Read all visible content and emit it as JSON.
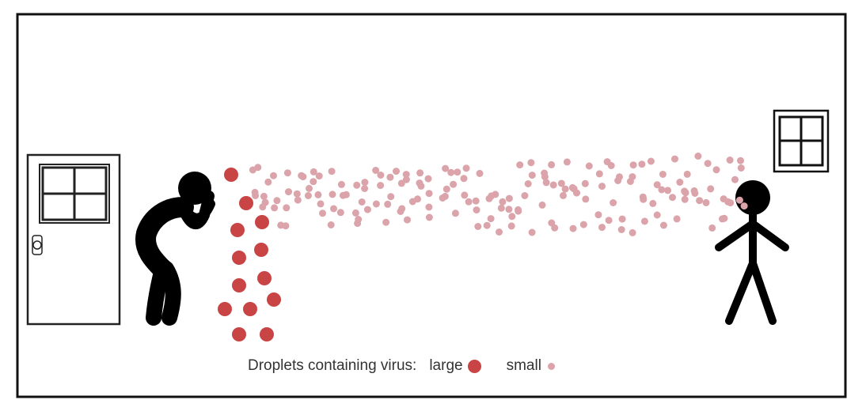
{
  "legend": {
    "title": "Droplets containing virus:",
    "large_label": "large",
    "small_label": "small"
  },
  "colors": {
    "large_droplet": "#c94444",
    "small_droplet": "#dba3aa",
    "figure": "#000000",
    "frame": "#111111"
  },
  "icons": [
    "door-icon",
    "window-icon",
    "coughing-person-icon",
    "standing-person-icon"
  ]
}
